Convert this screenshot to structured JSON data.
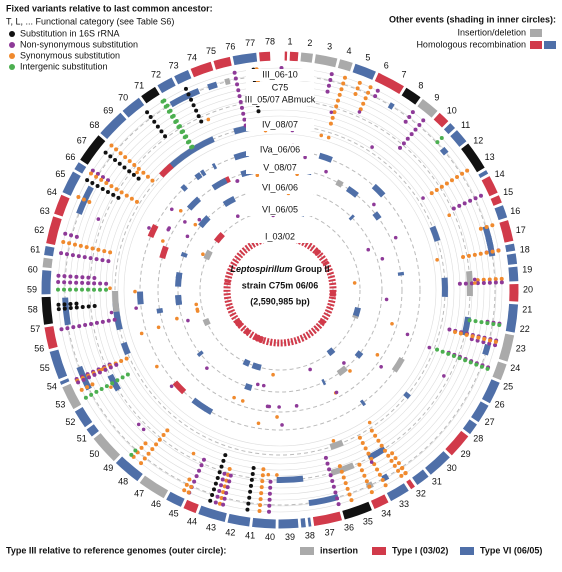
{
  "legend_left": {
    "title": "Fixed variants relative to last common ancestor:",
    "category_note": "T, L, ... Functional category (see Table S6)",
    "items": [
      "Substitution in 16S rRNA",
      "Non-synonymous substitution",
      "Synonymous substitution",
      "Intergenic substitution"
    ]
  },
  "legend_right": {
    "title": "Other events (shading in inner circles):",
    "items": [
      "Insertion/deletion",
      "Homologous recombination"
    ]
  },
  "rings": [
    "III_06-10",
    "C75",
    "III_05/07 ABmuck",
    "IV_08/07",
    "IVa_06/06",
    "V_08/07",
    "VI_06/06",
    "VI_06/05",
    "I_03/02"
  ],
  "center": {
    "organism": "Leptospirillum",
    "group": " Group II",
    "strain": "strain C75m 06/06",
    "size": "(2,590,985 bp)"
  },
  "contigs": [
    "1",
    "2",
    "3",
    "4",
    "5",
    "6",
    "7",
    "8",
    "9",
    "10",
    "11",
    "12",
    "13",
    "14",
    "15",
    "16",
    "17",
    "18",
    "19",
    "20",
    "21",
    "22",
    "23",
    "24",
    "25",
    "26",
    "27",
    "28",
    "29",
    "30",
    "31",
    "32",
    "33",
    "34",
    "35",
    "36",
    "37",
    "38",
    "39",
    "40",
    "41",
    "42",
    "43",
    "44",
    "45",
    "46",
    "47",
    "48",
    "49",
    "50",
    "51",
    "52",
    "53",
    "54",
    "55",
    "56",
    "57",
    "58",
    "59",
    "60",
    "61",
    "62",
    "63",
    "64",
    "65",
    "66",
    "67",
    "68",
    "69",
    "70",
    "71",
    "72",
    "73",
    "74",
    "75",
    "76",
    "77",
    "78"
  ],
  "legend_bottom": {
    "title": "Type III relative to reference genomes (outer circle):",
    "items": [
      "insertion",
      "Type I (03/02)",
      "Type VI (06/05)"
    ]
  }
}
